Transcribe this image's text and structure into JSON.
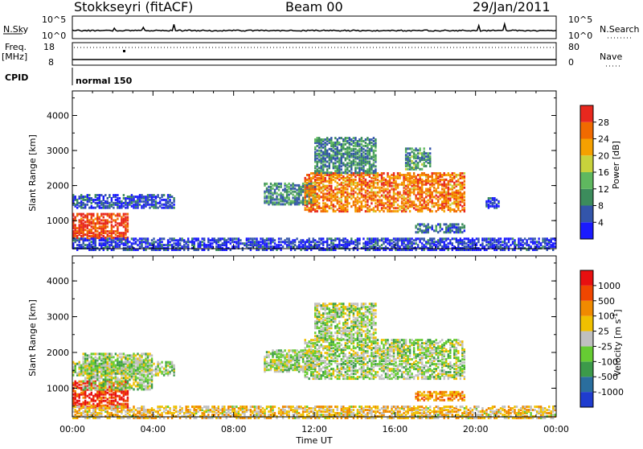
{
  "header": {
    "station": "Stokkseyri (fitACF)",
    "beam": "Beam 00",
    "date": "29/Jan/2011"
  },
  "top_panels": {
    "nsky_label": "N.Sky",
    "nsearch_label": "N.Search",
    "nsky_ticks": [
      "10^5",
      "10^0"
    ],
    "nsearch_ticks": [
      "10^5",
      "10^0"
    ],
    "freq_label": "Freq.",
    "freq_unit": "[MHz]",
    "freq_ticks": [
      "18",
      "8"
    ],
    "nave_label": "Nave",
    "nave_ticks": [
      "80",
      "0"
    ],
    "cpid_label": "CPID",
    "cpid_value": "normal 150"
  },
  "chart_data": [
    {
      "type": "heatmap",
      "name": "power",
      "ylabel": "Slant Range [km]",
      "xlabel": "Time UT",
      "x_ticks": [
        "00:00",
        "04:00",
        "08:00",
        "12:00",
        "16:00",
        "20:00",
        "00:00"
      ],
      "y_ticks": [
        "1000",
        "2000",
        "3000",
        "4000"
      ],
      "ylim": [
        200,
        4700
      ],
      "xlim_hours": [
        0,
        24
      ],
      "colorbar": {
        "label": "Power [dB]",
        "ticks": [
          "4",
          "8",
          "12",
          "16",
          "20",
          "24",
          "28"
        ],
        "colors": [
          "#1a1aff",
          "#3355aa",
          "#3c8c5c",
          "#5fb85f",
          "#c8d23c",
          "#f5a000",
          "#f06a00",
          "#e8281e"
        ]
      },
      "regions": [
        {
          "t": [
            0.0,
            2.8
          ],
          "r": [
            500,
            1250
          ],
          "level": 0.92
        },
        {
          "t": [
            0.0,
            5.0
          ],
          "r": [
            1400,
            1800
          ],
          "level": 0.15
        },
        {
          "t": [
            0.0,
            24.0
          ],
          "r": [
            200,
            550
          ],
          "level": 0.12
        },
        {
          "t": [
            9.5,
            12.0
          ],
          "r": [
            1500,
            2100
          ],
          "level": 0.3
        },
        {
          "t": [
            11.5,
            19.5
          ],
          "r": [
            1300,
            2400
          ],
          "level": 0.78
        },
        {
          "t": [
            12.0,
            15.0
          ],
          "r": [
            2400,
            3400
          ],
          "level": 0.3
        },
        {
          "t": [
            16.5,
            17.8
          ],
          "r": [
            2500,
            3100
          ],
          "level": 0.35
        },
        {
          "t": [
            17.0,
            19.5
          ],
          "r": [
            700,
            950
          ],
          "level": 0.25
        },
        {
          "t": [
            20.5,
            21.2
          ],
          "r": [
            1400,
            1700
          ],
          "level": 0.1
        }
      ]
    },
    {
      "type": "heatmap",
      "name": "velocity",
      "ylabel": "Slant Range [km]",
      "xlabel": "Time UT",
      "x_ticks": [
        "00:00",
        "04:00",
        "08:00",
        "12:00",
        "16:00",
        "20:00",
        "00:00"
      ],
      "y_ticks": [
        "1000",
        "2000",
        "3000",
        "4000"
      ],
      "ylim": [
        200,
        4700
      ],
      "xlim_hours": [
        0,
        24
      ],
      "colorbar": {
        "label": "Velocity [m s^-1]",
        "ticks": [
          "1000",
          "500",
          "100",
          "25",
          "-25",
          "-100",
          "-500",
          "-1000"
        ],
        "colors": [
          "#1f3ccf",
          "#2a6e9e",
          "#3c9a4a",
          "#66cc33",
          "#c0c0c0",
          "#f0c000",
          "#f08a00",
          "#f04600",
          "#e81010"
        ]
      },
      "regions": [
        {
          "t": [
            0.0,
            2.8
          ],
          "r": [
            500,
            1250
          ],
          "level": 0.9
        },
        {
          "t": [
            0.5,
            4.0
          ],
          "r": [
            1000,
            2000
          ],
          "level": 0.45
        },
        {
          "t": [
            0.0,
            5.0
          ],
          "r": [
            1400,
            1800
          ],
          "level": 0.45
        },
        {
          "t": [
            0.0,
            24.0
          ],
          "r": [
            200,
            550
          ],
          "level": 0.6
        },
        {
          "t": [
            9.5,
            12.0
          ],
          "r": [
            1500,
            2100
          ],
          "level": 0.45
        },
        {
          "t": [
            11.5,
            19.5
          ],
          "r": [
            1300,
            2400
          ],
          "level": 0.45
        },
        {
          "t": [
            12.0,
            15.0
          ],
          "r": [
            2400,
            3400
          ],
          "level": 0.45
        },
        {
          "t": [
            17.0,
            19.5
          ],
          "r": [
            700,
            950
          ],
          "level": 0.72
        }
      ]
    }
  ]
}
